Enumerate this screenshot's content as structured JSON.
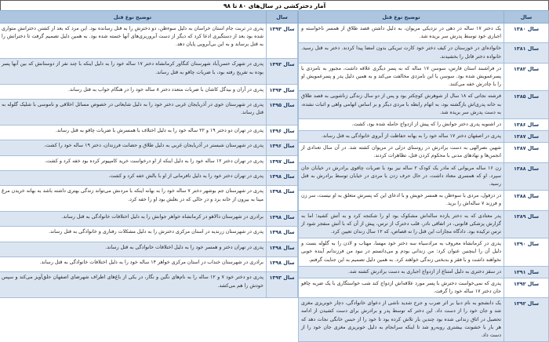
{
  "title": "آمار دخترکشی در سال‌های ۸۰ تا ۹۸",
  "column_headers": {
    "year": "سال",
    "description": "توضیح نوع قتل"
  },
  "colors": {
    "header_bg": "#adc5de",
    "header_text": "#17365d",
    "alt_row_bg": "#dbe5f1",
    "border": "#95b3d7"
  },
  "decade_80s_table": {
    "rows": [
      {
        "year": "سال ۱۳۸۰",
        "desc": "یک دختر ۱۷ ساله در دهی در نزدیکی مریوان، به دلیل داشتن قصد طلاق از همسر ناخواسته و اجباری خود توسط پدرش سر بریده شد."
      },
      {
        "year": "سال ۱۳۸۱",
        "desc": "خانواده‌ای در خوزستان در کیف دختر خود کارت تبریکی بدون امضا پیدا کردند. دختر به قتل رسید. خانواده دختر قاتل را بخشیدند."
      },
      {
        "year": "سال ۱۳۸۲",
        "desc": "در فراشبند استان فارس، سوسن ۱۷ ساله که به پسر دیگری علاقه داشت، مجبور به نامزدی با پسرعمویش شده بود. سوسن با این نامزدی مخالفت می‌کند و به همین دلیل پدر و پسرعمویش او را با چادرش خفه می‌کنند."
      },
      {
        "year": "سال ۱۳۸۵",
        "desc": "فرشته نجاتی که ۱۸ سال از شوهرش کوچکتر بود و پس از دو سال زندگی زناشویی به قصد طلاق به خانه پدری‌اش بازگشته بود، به اتهام رابطه با مردی دیگر و بر اساس اتهامی واهی و اثبات نشده، به دست پدرش سر بریده شد."
      },
      {
        "year": "سال ۱۳۸۶",
        "desc": "در اشنویه پدری دختر جوانش را که پیش از ازدواج حامله شده بود، کشت."
      },
      {
        "year": "سال ۱۳۸۷",
        "desc": "پدری در اصفهان دختر ۱۷ ساله خود را به بهانه حفاظت از آبروی خانوادگی به قتل رساند."
      },
      {
        "year": "سال ۱۳۸۷",
        "desc": "شهین نصرالهی به دست برادرش در روستای دزلی در مریوان کشته شد. در آن سال تعدادی از انجمن‌ها و نهادهای مدنی با محکوم کردن قتل، تظاهرات کردند."
      },
      {
        "year": "سال ۱۳۸۸",
        "desc": "زن ۱۶ ساله مریوانی که مادر یک کودک ۲ ساله نیز بود با ضربات چاقوی برادرش در خیابان جان سپرد. او که همسری معتاد داشت، در حال حرف زدن با مردی در خیابان توسط برادرش به قتل رسید."
      },
      {
        "year": "سال ۱۳۸۸",
        "desc": "در دزفول، مردی با سوءظن به همسر خویش و با ادعای این که پسرش متعلق به او نیست، سر زن و فرزند ۷ ساله‌اش را برید."
      },
      {
        "year": "سال ۱۳۸۹",
        "desc": "پدر معتادی که به دختر یازده ساله‌اش مشکوک بود او را شکنجه کرد و به آتش کشید؛ اما به گزارش پزشکی قانونی، در اتفاقی نادر، قلب دخترک از ترس، پیش از آن که با آتش منفجر شود از ترس ترکیده بود. دادگاه مجازات این قتل را نه قصاص، که ۱۲ سال زندان تعیین کرد."
      },
      {
        "year": "سال ۱۳۹۰",
        "desc": "پدری در کرمانشاه معروف به مرادسیاه سه دختر خود مهسا، مهتاب و لادن را به گلوله بست و دلیل آن را اینچنین عنوان کرد: من زندانی بودم و می‌دانستم در نبود من فرزندانم آینده خوبی نخواهند داشت و با فقر و بدبختی زندگی خواهند کرد. به همین دلیل تصمیم به این جنایت گرفتم."
      },
      {
        "year": "سال ۱۳۹۱",
        "desc": "در سقز دختری به دلیل امتناع از ازدواج اجباری به دست برادرش کشته شد."
      },
      {
        "year": "سال ۱۳۹۲",
        "desc": "پدری که نمی‌خواست دخترش با پسر مورد علاقه‌اش ازدواج کند شب خواستگاری با یک ضربه چاقو جان دختر ۱۷ ساله خود را گرفت."
      },
      {
        "year": "سال ۱۳۹۲",
        "desc": "یک دانشجو به نام دنیا بر اثر ضرب و جرح شدید ناشی از دعوای خانوادگی، دچار خونریزی مغزی شد و جان خود را از دست داد. این دختر که توسط پدر و برادرش برای دست کشیدن از ادامه تحصیل در اتاق زندانی شده بود چندین بار تلاش کرده بود تا خود را از حبس خانگی نجات دهد که هر بار با خشونت بیشتری روبه‌رو شد تا اینکه سرانجام به دلیل خونریزی مغزی جان خود را از دست داد."
      }
    ]
  },
  "decade_90s_table": {
    "rows": [
      {
        "year": "سال ۱۳۹۳",
        "desc": "پدری در تربت جام استان خراسان به دلیل سوءظن، دو دخترش را به قتل رسانده بود. این مرد که بعد از کشتن دخترانش متواری شده بود بعد از دستگیری ادعا کرد که دیگر از دست آبروریزی‌های آنها خسته شده بود. به همین دلیل تصمیم گرفت تا دخترانش را به قتل برساند و به این بی‌آبرویی پایان دهد."
      },
      {
        "year": "سال ۱۳۹۳",
        "desc": "پدری در شهرک حسن‌آباد شهرستان کنگاور کرمانشاه دختر ۱۷ ساله خود را به دلیل اینکه با چند نفر از دوستانش که بین آنها پسر بوده به تفریح رفته بود، با ضربات چاقو به قتل رساند."
      },
      {
        "year": "سال ۱۳۹۴",
        "desc": "پدری در آران و بیدگل کاشان با ضربات متعدد دختر ۸ ساله خود را در هنگام خواب به قتل رساند."
      },
      {
        "year": "سال ۱۳۹۵",
        "desc": "پدری در شهرستان خوی در آذربایجان غربی دختر خود را به دلیل شایعاتی در خصوص مسائل اخلاقی و ناموسی با شلیک گلوله به قتل رساند."
      },
      {
        "year": "سال ۱۳۹۶",
        "desc": "پدری در تهران دو دختر ۱۹ و ۲۲ ساله خود را به دلیل اختلاف با همسرش با ضربات چاقو به قتل رساند."
      },
      {
        "year": "سال ۱۳۹۶",
        "desc": "پدری در شهرستان شبستر در آذربایجان غربی به دلیل طلاق و حضانت فرزندان، دختر ۱۹ ساله خود را کشت."
      },
      {
        "year": "سال ۱۳۹۷",
        "desc": "پدری در تهران دختر ۱۲ ساله خود را به دلیل اینکه از او درخواست خرید کامپیوتر کرده بود خفه کرد و کشت."
      },
      {
        "year": "سال ۱۳۹۸",
        "desc": "پدری در تهران دختر خود را به دلیل نافرمانی از او با بالش خفه کرد و کشت."
      },
      {
        "year": "سال ۱۳۹۸",
        "desc": "پدری در شهرستان جم بوشهر دختر ۷ ساله خود را به بهانه اینکه با مردنش می‌تواند زندگی بهتری داشته باشد به بهانه خریدن مرغ مینا به بیرون از خانه برد و در حالی که در بغلش بود او را خفه کرد."
      },
      {
        "year": "سال ۱۳۹۸",
        "desc": "برادری در شهرستان دالاهو در کرمانشاه خواهر جوانش را به دلیل اختلافات خانوادگی به قتل رساند."
      },
      {
        "year": "سال ۱۳۹۸",
        "desc": "پدری در شهرستان زرندیه در استان مرکزی دخترش را به دلیل مشکلات رفتاری و خانوادگی به قتل رساند."
      },
      {
        "year": "سال ۱۳۹۸",
        "desc": "پدری در تهران دختر و همسر خود را به دلیل اختلافات خانوادگی به قتل رساند."
      },
      {
        "year": "سال ۱۳۹۸",
        "desc": "برادری در شهرستان خنداب در استان مرکزی خواهر ۱۴ ساله خود را به دلیل اختلافات خانوادگی به قتل رساند."
      },
      {
        "year": "سال ۱۳۹۳",
        "desc": "پدری دو دختر خود ۷ و ۱۲ ساله را به نام‌های نگین و نگار، در یکی از باغ‌های اطراف شهرضای اصفهان حلق‌آویز می‌کند و سپس خودش را هم می‌کشد."
      }
    ]
  }
}
